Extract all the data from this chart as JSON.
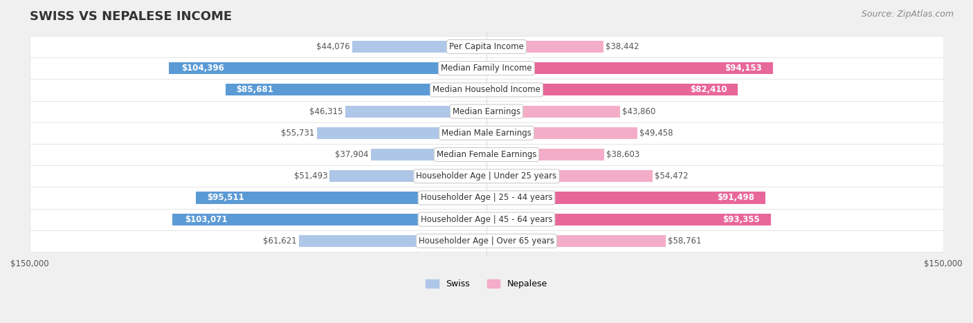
{
  "title": "SWISS VS NEPALESE INCOME",
  "source": "Source: ZipAtlas.com",
  "categories": [
    "Per Capita Income",
    "Median Family Income",
    "Median Household Income",
    "Median Earnings",
    "Median Male Earnings",
    "Median Female Earnings",
    "Householder Age | Under 25 years",
    "Householder Age | 25 - 44 years",
    "Householder Age | 45 - 64 years",
    "Householder Age | Over 65 years"
  ],
  "swiss_values": [
    44076,
    104396,
    85681,
    46315,
    55731,
    37904,
    51493,
    95511,
    103071,
    61621
  ],
  "nepalese_values": [
    38442,
    94153,
    82410,
    43860,
    49458,
    38603,
    54472,
    91498,
    93355,
    58761
  ],
  "swiss_labels": [
    "$44,076",
    "$104,396",
    "$85,681",
    "$46,315",
    "$55,731",
    "$37,904",
    "$51,493",
    "$95,511",
    "$103,071",
    "$61,621"
  ],
  "nepalese_labels": [
    "$38,442",
    "$94,153",
    "$82,410",
    "$43,860",
    "$49,458",
    "$38,603",
    "$54,472",
    "$91,498",
    "$93,355",
    "$58,761"
  ],
  "swiss_color_high": "#5b9bd5",
  "swiss_color_low": "#aec6e8",
  "nepalese_color_high": "#e8679a",
  "nepalese_color_low": "#f4adc8",
  "max_value": 150000,
  "bar_height": 0.55,
  "bg_color": "#f0f0f0",
  "row_bg_color": "#f9f9f9",
  "label_fontsize": 8.5,
  "title_fontsize": 13,
  "source_fontsize": 9,
  "legend_fontsize": 9,
  "axis_label_fontsize": 8.5
}
